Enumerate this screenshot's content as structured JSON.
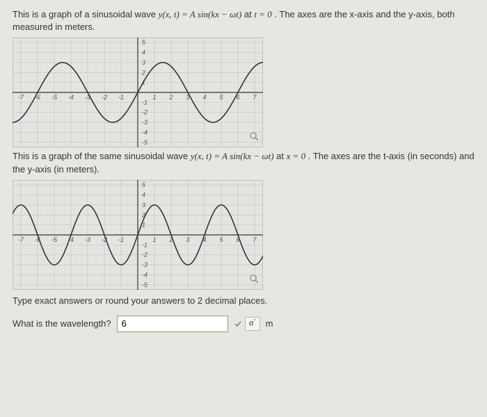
{
  "desc1_pre": "This is a graph of a sinusoidal wave ",
  "desc1_eq": "y(x, t) = A sin(kx − ωt)",
  "desc1_mid": " at ",
  "desc1_cond": "t = 0",
  "desc1_post": " .  The axes are the x-axis and the y-axis, both measured in meters.",
  "desc2_pre": "This is a graph of the same sinusoidal wave ",
  "desc2_eq": "y(x, t) = A sin(kx − ωt)",
  "desc2_mid": " at ",
  "desc2_cond": "x = 0",
  "desc2_post": " .  The axes are the t-axis (in seconds) and the y-axis (in meters).",
  "instructions": "Type exact answers or round your answers to 2 decimal places.",
  "question": "What is the wavelength?",
  "answer_value": "6",
  "unit": "m",
  "graph1": {
    "type": "line",
    "xlim": [
      -7.5,
      7.5
    ],
    "ylim": [
      -5.5,
      5.5
    ],
    "xticks": [
      -7,
      -6,
      -5,
      -4,
      -3,
      -2,
      -1,
      1,
      2,
      3,
      4,
      5,
      6,
      7
    ],
    "yticks": [
      -5,
      -4,
      -3,
      -2,
      -1,
      1,
      2,
      3,
      4,
      5
    ],
    "grid_major_step": 1,
    "grid_minor_step": 0.2,
    "amplitude": 3,
    "period": 6,
    "phase": 0,
    "curve_color": "#333333",
    "grid_color": "#bfbfbf",
    "minor_grid_color": "#d8d8d8",
    "axis_color": "#333333",
    "background": "#e8e6e3",
    "label_fontsize": 9
  },
  "graph2": {
    "type": "line",
    "xlim": [
      -7.5,
      7.5
    ],
    "ylim": [
      -5.5,
      5.5
    ],
    "xticks": [
      -7,
      -6,
      -5,
      -4,
      -3,
      -2,
      -1,
      1,
      2,
      3,
      4,
      5,
      6,
      7
    ],
    "yticks": [
      -5,
      -4,
      -3,
      -2,
      -1,
      1,
      2,
      3,
      4,
      5
    ],
    "grid_major_step": 1,
    "grid_minor_step": 0.2,
    "amplitude": 3,
    "period": 4,
    "phase": 0,
    "curve_color": "#333333",
    "grid_color": "#bfbfbf",
    "minor_grid_color": "#d8d8d8",
    "axis_color": "#333333",
    "background": "#e8e6e3",
    "label_fontsize": 9
  }
}
